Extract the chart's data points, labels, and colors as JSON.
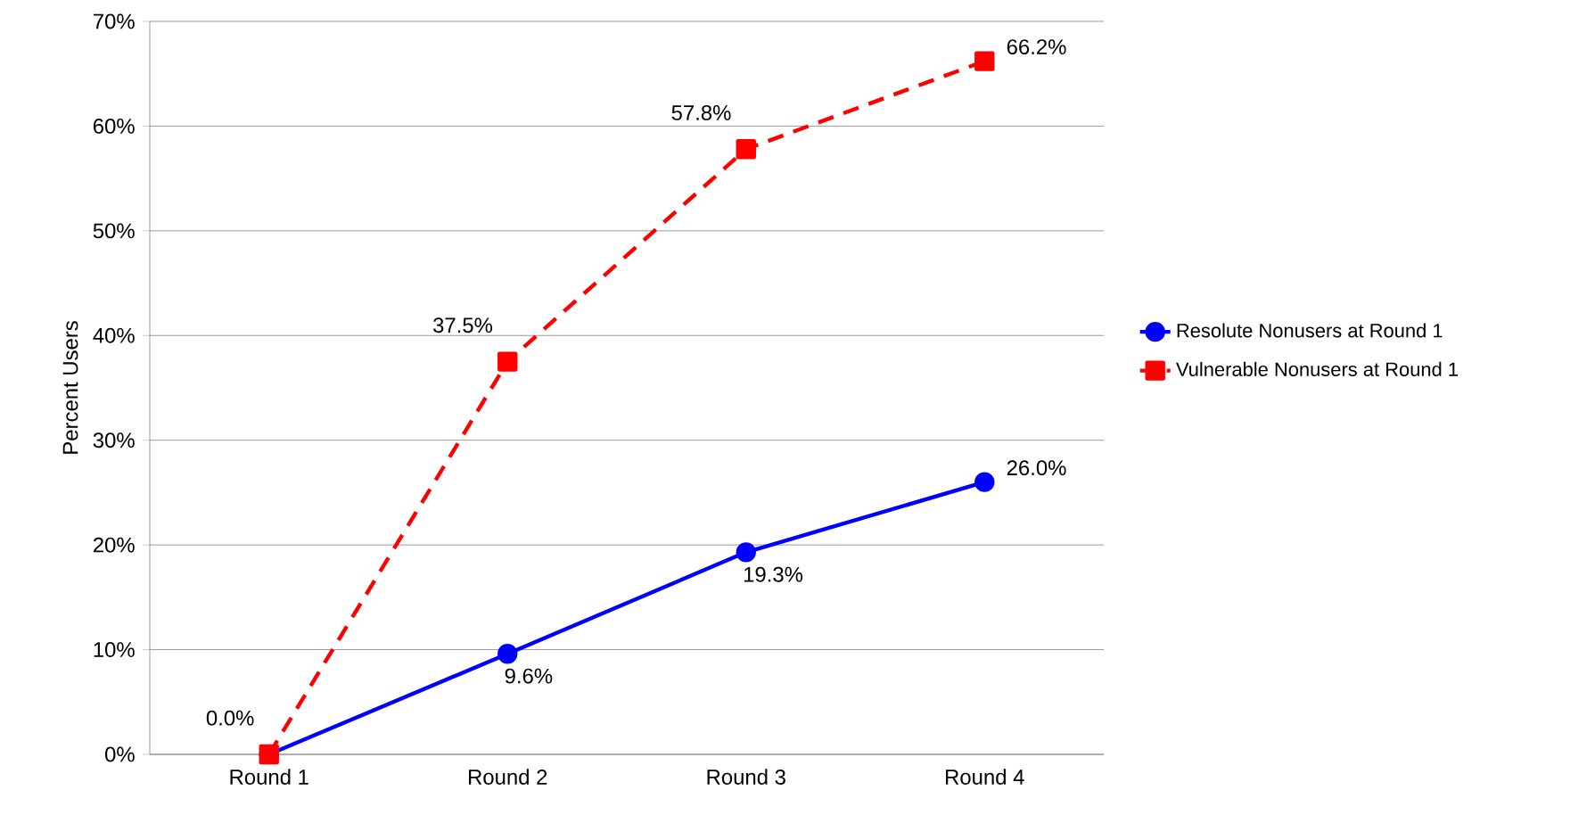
{
  "chart_data": {
    "type": "line",
    "ylabel": "Percent Users",
    "categories": [
      "Round 1",
      "Round 2",
      "Round 3",
      "Round 4"
    ],
    "series": [
      {
        "name": "Resolute Nonusers at Round 1",
        "color": "#0000ff",
        "values": [
          0,
          9.6,
          19.3,
          26.0
        ],
        "value_labels": [
          null,
          "9.6%",
          "19.3%",
          "26.0%"
        ],
        "marker": "circle",
        "line_style": "solid"
      },
      {
        "name": "Vulnerable Nonusers at Round 1",
        "color": "#ff0000",
        "values": [
          0,
          37.5,
          57.8,
          66.2
        ],
        "value_labels": [
          "0.0%",
          "37.5%",
          "57.8%",
          "66.2%"
        ],
        "marker": "square",
        "line_style": "dashed"
      }
    ],
    "ylim": [
      0,
      70
    ],
    "yticks": [
      {
        "value": 0,
        "label": "0%"
      },
      {
        "value": 10,
        "label": "10%"
      },
      {
        "value": 20,
        "label": "20%"
      },
      {
        "value": 30,
        "label": "30%"
      },
      {
        "value": 40,
        "label": "40%"
      },
      {
        "value": 50,
        "label": "50%"
      },
      {
        "value": 60,
        "label": "60%"
      },
      {
        "value": 70,
        "label": "70%"
      }
    ],
    "grid": "y",
    "legend": "right"
  }
}
